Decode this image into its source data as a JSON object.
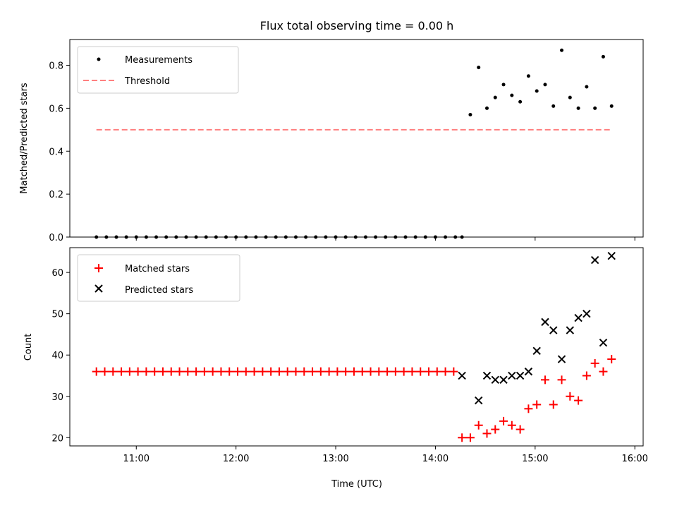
{
  "chart_data": [
    {
      "type": "scatter",
      "title": "Flux total observing time = 0.00 h",
      "ylabel": "Matched/Predicted stars",
      "xlabel": "",
      "xlim": [
        "10:20",
        "16:05"
      ],
      "ylim": [
        0,
        0.92
      ],
      "yticks": [
        "0.0",
        "0.2",
        "0.4",
        "0.6",
        "0.8"
      ],
      "xticks": [
        "11:00",
        "12:00",
        "13:00",
        "14:00",
        "15:00",
        "16:00"
      ],
      "show_xtick_labels": false,
      "legend_position": "upper-left",
      "series": [
        {
          "name": "Measurements",
          "marker": "dot",
          "color": "#000000",
          "x": [
            "10:36",
            "10:42",
            "10:48",
            "10:54",
            "11:00",
            "11:06",
            "11:12",
            "11:18",
            "11:24",
            "11:30",
            "11:36",
            "11:42",
            "11:48",
            "11:54",
            "12:00",
            "12:06",
            "12:12",
            "12:18",
            "12:24",
            "12:30",
            "12:36",
            "12:42",
            "12:48",
            "12:54",
            "13:00",
            "13:06",
            "13:12",
            "13:18",
            "13:24",
            "13:30",
            "13:36",
            "13:42",
            "13:48",
            "13:54",
            "14:00",
            "14:06",
            "14:12",
            "14:16",
            "14:21",
            "14:26",
            "14:31",
            "14:36",
            "14:41",
            "14:46",
            "14:51",
            "14:56",
            "15:01",
            "15:06",
            "15:11",
            "15:16",
            "15:21",
            "15:26",
            "15:31",
            "15:36",
            "15:41",
            "15:46"
          ],
          "y": [
            0,
            0,
            0,
            0,
            0,
            0,
            0,
            0,
            0,
            0,
            0,
            0,
            0,
            0,
            0,
            0,
            0,
            0,
            0,
            0,
            0,
            0,
            0,
            0,
            0,
            0,
            0,
            0,
            0,
            0,
            0,
            0,
            0,
            0,
            0,
            0,
            0,
            0,
            0.57,
            0.79,
            0.6,
            0.65,
            0.71,
            0.66,
            0.63,
            0.75,
            0.68,
            0.71,
            0.61,
            0.87,
            0.65,
            0.6,
            0.7,
            0.6,
            0.84,
            0.61
          ]
        },
        {
          "name": "Threshold",
          "marker": "dashed-line",
          "color": "#ff7f7f",
          "x": [
            "10:36",
            "15:46"
          ],
          "y": [
            0.5,
            0.5
          ]
        }
      ]
    },
    {
      "type": "scatter",
      "title": "",
      "ylabel": "Count",
      "xlabel": "Time (UTC)",
      "xlim": [
        "10:20",
        "16:05"
      ],
      "ylim": [
        18,
        66
      ],
      "yticks": [
        "20",
        "30",
        "40",
        "50",
        "60"
      ],
      "xticks": [
        "11:00",
        "12:00",
        "13:00",
        "14:00",
        "15:00",
        "16:00"
      ],
      "show_xtick_labels": true,
      "legend_position": "upper-left",
      "series": [
        {
          "name": "Matched stars",
          "marker": "plus",
          "color": "#ff0000",
          "x": [
            "10:36",
            "10:41",
            "10:46",
            "10:51",
            "10:56",
            "11:01",
            "11:06",
            "11:11",
            "11:16",
            "11:21",
            "11:26",
            "11:31",
            "11:36",
            "11:41",
            "11:46",
            "11:51",
            "11:56",
            "12:01",
            "12:06",
            "12:11",
            "12:16",
            "12:21",
            "12:26",
            "12:31",
            "12:36",
            "12:41",
            "12:46",
            "12:51",
            "12:56",
            "13:01",
            "13:06",
            "13:11",
            "13:16",
            "13:21",
            "13:26",
            "13:31",
            "13:36",
            "13:41",
            "13:46",
            "13:51",
            "13:56",
            "14:01",
            "14:06",
            "14:11",
            "14:16",
            "14:21",
            "14:26",
            "14:31",
            "14:36",
            "14:41",
            "14:46",
            "14:51",
            "14:56",
            "15:01",
            "15:06",
            "15:11",
            "15:16",
            "15:21",
            "15:26",
            "15:31",
            "15:36",
            "15:41",
            "15:46"
          ],
          "y": [
            36,
            36,
            36,
            36,
            36,
            36,
            36,
            36,
            36,
            36,
            36,
            36,
            36,
            36,
            36,
            36,
            36,
            36,
            36,
            36,
            36,
            36,
            36,
            36,
            36,
            36,
            36,
            36,
            36,
            36,
            36,
            36,
            36,
            36,
            36,
            36,
            36,
            36,
            36,
            36,
            36,
            36,
            36,
            36,
            20,
            20,
            23,
            21,
            22,
            24,
            23,
            22,
            27,
            28,
            34,
            28,
            34,
            30,
            29,
            35,
            38,
            36,
            39
          ]
        },
        {
          "name": "Predicted stars",
          "marker": "x",
          "color": "#000000",
          "x": [
            "14:16",
            "14:26",
            "14:31",
            "14:36",
            "14:41",
            "14:46",
            "14:51",
            "14:56",
            "15:01",
            "15:06",
            "15:11",
            "15:16",
            "15:21",
            "15:26",
            "15:31",
            "15:36",
            "15:41",
            "15:46"
          ],
          "y": [
            35,
            29,
            35,
            34,
            34,
            35,
            35,
            36,
            41,
            48,
            46,
            39,
            46,
            49,
            50,
            63,
            43,
            64
          ]
        }
      ]
    }
  ]
}
